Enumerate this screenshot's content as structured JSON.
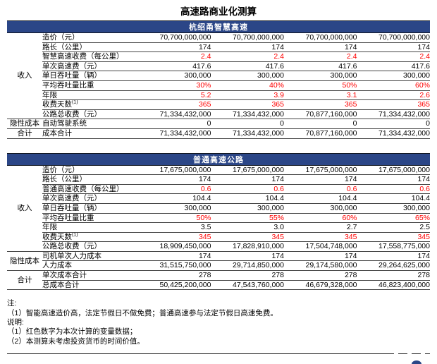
{
  "page_title": "高速路商业化测算",
  "colors": {
    "header_bar": "#2B4687",
    "variable_red": "#FF0000"
  },
  "tables": [
    {
      "header": "杭绍甬智慧高速",
      "groups": [
        {
          "label": "收入",
          "rows": [
            {
              "label": "造价（元）",
              "values": [
                "70,700,000,000",
                "70,700,000,000",
                "70,700,000,000",
                "70,700,000,000"
              ]
            },
            {
              "label": "路长（公里）",
              "values": [
                "174",
                "174",
                "174",
                "174"
              ]
            },
            {
              "label": "智慧高速收费（每公里）",
              "variable_red": true,
              "values": [
                "2.4",
                "2.4",
                "2.4",
                "2.4"
              ]
            },
            {
              "label": "单次高速费（元）",
              "values": [
                "417.6",
                "417.6",
                "417.6",
                "417.6"
              ]
            },
            {
              "label": "单日吞吐量（辆）",
              "values": [
                "300,000",
                "300,000",
                "300,000",
                "300,000"
              ]
            },
            {
              "label": "平均吞吐量比重",
              "variable_red": true,
              "values": [
                "30%",
                "40%",
                "50%",
                "60%"
              ]
            },
            {
              "label": "年限",
              "variable_red": true,
              "values": [
                "5.2",
                "3.9",
                "3.1",
                "2.6"
              ]
            },
            {
              "label": "收费天数",
              "sup": "(1)",
              "variable_red": true,
              "values": [
                "365",
                "365",
                "365",
                "365"
              ]
            },
            {
              "label": "公路总收费（元）",
              "values": [
                "71,334,432,000",
                "71,334,432,000",
                "70,877,160,000",
                "71,334,432,000"
              ]
            }
          ]
        },
        {
          "label": "隐性成本",
          "rows": [
            {
              "label": "自动驾驶系统",
              "values": [
                "0",
                "0",
                "0",
                "0"
              ]
            }
          ]
        },
        {
          "label": "合计",
          "rows": [
            {
              "label": "成本合计",
              "values": [
                "71,334,432,000",
                "71,334,432,000",
                "70,877,160,000",
                "71,334,432,000"
              ]
            }
          ]
        }
      ]
    },
    {
      "header": "普通高速公路",
      "groups": [
        {
          "label": "收入",
          "rows": [
            {
              "label": "造价（元）",
              "values": [
                "17,675,000,000",
                "17,675,000,000",
                "17,675,000,000",
                "17,675,000,000"
              ]
            },
            {
              "label": "路长（公里）",
              "values": [
                "174",
                "174",
                "174",
                "174"
              ]
            },
            {
              "label": "普通高速收费（每公里）",
              "variable_red": true,
              "values": [
                "0.6",
                "0.6",
                "0.6",
                "0.6"
              ]
            },
            {
              "label": "单次高速费（元）",
              "values": [
                "104.4",
                "104.4",
                "104.4",
                "104.4"
              ]
            },
            {
              "label": "单日吞吐量（辆）",
              "values": [
                "300,000",
                "300,000",
                "300,000",
                "300,000"
              ]
            },
            {
              "label": "平均吞吐量比重",
              "variable_red": true,
              "values": [
                "50%",
                "55%",
                "60%",
                "65%"
              ]
            },
            {
              "label": "年限",
              "values": [
                "3.5",
                "3.0",
                "2.7",
                "2.5"
              ]
            },
            {
              "label": "收费天数",
              "sup": "(1)",
              "variable_red": true,
              "values": [
                "345",
                "345",
                "345",
                "345"
              ]
            },
            {
              "label": "公路总收费（元）",
              "values": [
                "18,909,450,000",
                "17,828,910,000",
                "17,504,748,000",
                "17,558,775,000"
              ]
            }
          ]
        },
        {
          "label": "隐性成本",
          "rows": [
            {
              "label": "司机单次人力成本",
              "values": [
                "174",
                "174",
                "174",
                "174"
              ]
            },
            {
              "label": "人力成本",
              "values": [
                "31,515,750,000",
                "29,714,850,000",
                "29,174,580,000",
                "29,264,625,000"
              ]
            }
          ]
        },
        {
          "label": "合计",
          "rows": [
            {
              "label": "单次成本合计",
              "values": [
                "278",
                "278",
                "278",
                "278"
              ]
            },
            {
              "label": "总成本合计",
              "values": [
                "50,425,200,000",
                "47,543,760,000",
                "46,679,328,000",
                "46,823,400,000"
              ]
            }
          ]
        }
      ]
    }
  ],
  "notes": {
    "lines": [
      "注:",
      "（1）智能高速造价高，法定节假日不做免费；普通高速参与法定节假日高速免费。",
      "说明:",
      "（1）红色数字为本次计算的变量数据；",
      "（2）本测算未考虑投资货币的时间价值。"
    ]
  }
}
